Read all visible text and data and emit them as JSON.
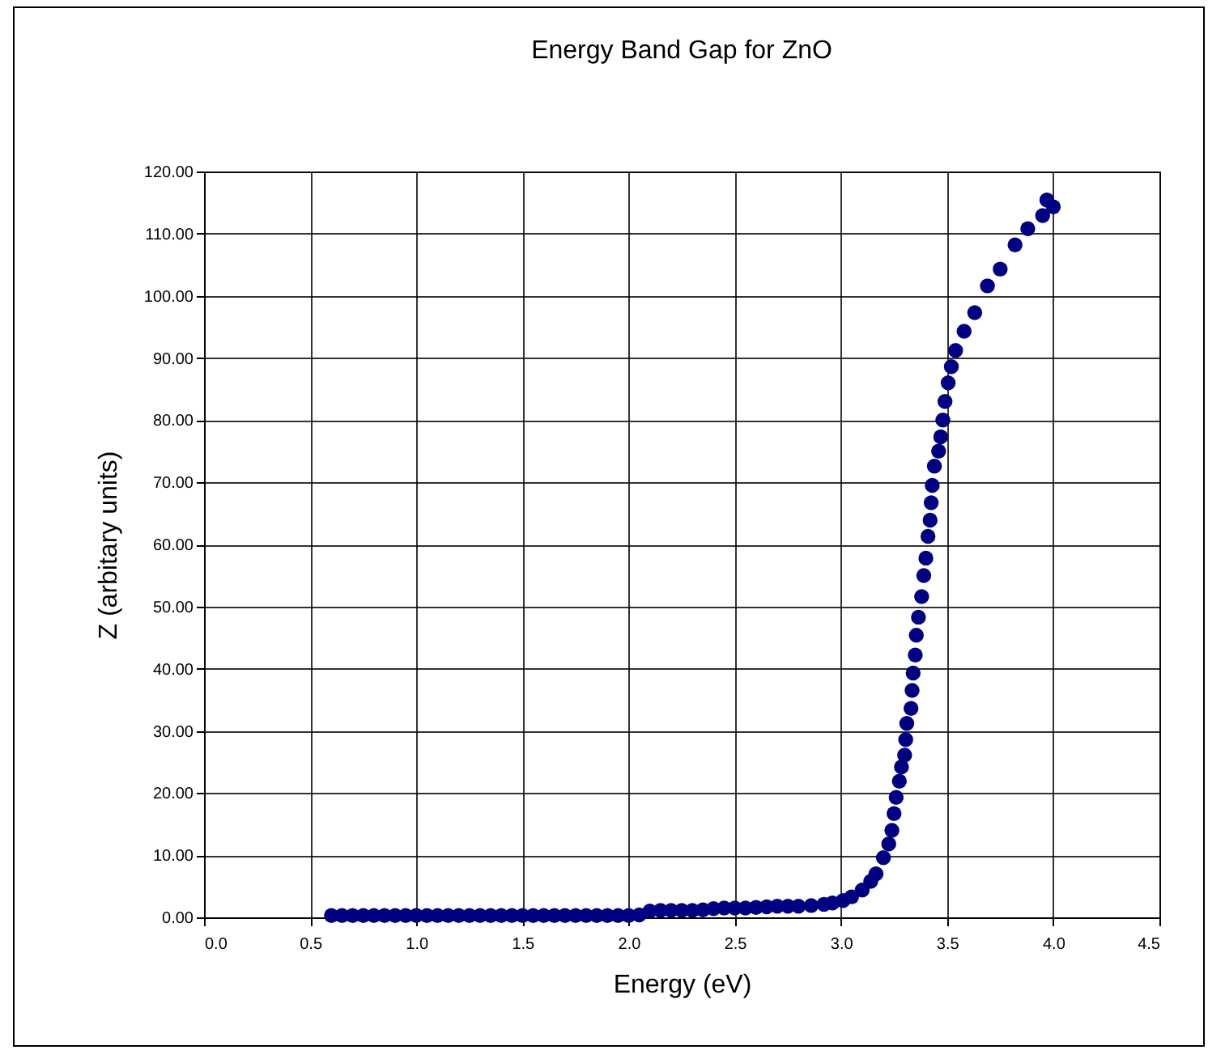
{
  "chart_data": {
    "type": "scatter",
    "title": "Energy Band Gap for ZnO",
    "xlabel": "Energy (eV)",
    "ylabel": "Z (arbitary units)",
    "xlim": [
      0,
      4.5
    ],
    "ylim": [
      0,
      120
    ],
    "xticks": [
      {
        "value": 0,
        "label": "0.0"
      },
      {
        "value": 0.5,
        "label": "0.5"
      },
      {
        "value": 1,
        "label": "1.0"
      },
      {
        "value": 1.5,
        "label": "1.5"
      },
      {
        "value": 2,
        "label": "2.0"
      },
      {
        "value": 2.5,
        "label": "2.5"
      },
      {
        "value": 3,
        "label": "3.0"
      },
      {
        "value": 3.5,
        "label": "3.5"
      },
      {
        "value": 4,
        "label": "4.0"
      },
      {
        "value": 4.5,
        "label": "4.5"
      }
    ],
    "yticks": [
      {
        "value": 0,
        "label": "0.00"
      },
      {
        "value": 10,
        "label": "10.00"
      },
      {
        "value": 20,
        "label": "20.00"
      },
      {
        "value": 30,
        "label": "30.00"
      },
      {
        "value": 40,
        "label": "40.00"
      },
      {
        "value": 50,
        "label": "50.00"
      },
      {
        "value": 60,
        "label": "60.00"
      },
      {
        "value": 70,
        "label": "70.00"
      },
      {
        "value": 80,
        "label": "80.00"
      },
      {
        "value": 90,
        "label": "90.00"
      },
      {
        "value": 100,
        "label": "100.00"
      },
      {
        "value": 110,
        "label": "110.00"
      },
      {
        "value": 120,
        "label": "120.00"
      }
    ],
    "grid": true,
    "marker": "circle",
    "series": [
      {
        "color": "#000080",
        "x": [
          0.6,
          0.65,
          0.7,
          0.75,
          0.8,
          0.85,
          0.9,
          0.95,
          1.0,
          1.05,
          1.1,
          1.15,
          1.2,
          1.25,
          1.3,
          1.35,
          1.4,
          1.45,
          1.5,
          1.55,
          1.6,
          1.65,
          1.7,
          1.75,
          1.8,
          1.85,
          1.9,
          1.95,
          2.0,
          2.05,
          2.1,
          2.15,
          2.2,
          2.25,
          2.3,
          2.35,
          2.4,
          2.45,
          2.5,
          2.55,
          2.6,
          2.65,
          2.7,
          2.75,
          2.8,
          2.86,
          2.92,
          2.96,
          3.01,
          3.05,
          3.1,
          3.14,
          3.165,
          3.2,
          3.225,
          3.24,
          3.25,
          3.26,
          3.275,
          3.285,
          3.3,
          3.305,
          3.31,
          3.33,
          3.335,
          3.34,
          3.35,
          3.355,
          3.365,
          3.38,
          3.39,
          3.4,
          3.41,
          3.42,
          3.425,
          3.43,
          3.44,
          3.46,
          3.47,
          3.48,
          3.49,
          3.505,
          3.52,
          3.54,
          3.58,
          3.63,
          3.69,
          3.75,
          3.82,
          3.88,
          3.95,
          3.97,
          4.0
        ],
        "values": [
          0.3,
          0.3,
          0.3,
          0.3,
          0.3,
          0.3,
          0.3,
          0.3,
          0.3,
          0.3,
          0.3,
          0.3,
          0.3,
          0.3,
          0.3,
          0.3,
          0.3,
          0.3,
          0.3,
          0.3,
          0.3,
          0.3,
          0.3,
          0.3,
          0.3,
          0.3,
          0.3,
          0.3,
          0.3,
          0.4,
          1.0,
          1.1,
          1.1,
          1.1,
          1.1,
          1.2,
          1.4,
          1.5,
          1.5,
          1.5,
          1.6,
          1.7,
          1.8,
          1.8,
          1.8,
          1.9,
          2.1,
          2.3,
          2.7,
          3.3,
          4.4,
          5.8,
          7,
          9.6,
          11.8,
          14,
          16.7,
          19.3,
          21.9,
          24.2,
          26.1,
          28.6,
          31.2,
          33.6,
          36.5,
          39.3,
          42.2,
          45.4,
          48.3,
          51.6,
          55,
          57.8,
          61.3,
          63.9,
          66.7,
          69.5,
          72.6,
          75,
          77.3,
          80,
          83,
          86,
          88.6,
          91.2,
          94.3,
          97.3,
          101.6,
          104.3,
          108.2,
          110.8,
          112.9,
          115.4,
          114.3
        ]
      }
    ]
  }
}
